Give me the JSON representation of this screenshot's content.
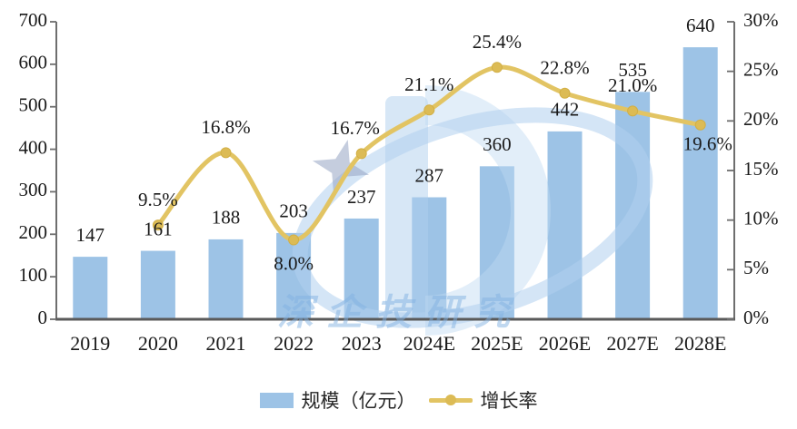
{
  "chart_data": {
    "type": "bar",
    "subtype": "bar-line-combo",
    "categories": [
      "2019",
      "2020",
      "2021",
      "2022",
      "2023",
      "2024E",
      "2025E",
      "2026E",
      "2027E",
      "2028E"
    ],
    "series": [
      {
        "name": "规模（亿元）",
        "type": "bar",
        "axis": "left",
        "values": [
          147,
          161,
          188,
          203,
          237,
          287,
          360,
          442,
          535,
          640
        ],
        "labels": [
          "147",
          "161",
          "188",
          "203",
          "237",
          "287",
          "360",
          "442",
          "535",
          "640"
        ],
        "color": "#9DC3E6"
      },
      {
        "name": "增长率",
        "type": "line",
        "axis": "right",
        "values": [
          null,
          9.5,
          16.8,
          8.0,
          16.7,
          21.1,
          25.4,
          22.8,
          21.0,
          19.6
        ],
        "labels": [
          null,
          "9.5%",
          "16.8%",
          "8.0%",
          "16.7%",
          "21.1%",
          "25.4%",
          "22.8%",
          "21.0%",
          "19.6%"
        ],
        "color": "#E2C463",
        "marker_color": "#DCBB55"
      }
    ],
    "left_axis": {
      "min": 0,
      "max": 700,
      "step": 100,
      "ticks": [
        "0",
        "100",
        "200",
        "300",
        "400",
        "500",
        "600",
        "700"
      ]
    },
    "right_axis": {
      "min": 0,
      "max": 30,
      "step": 5,
      "ticks": [
        "0%",
        "5%",
        "10%",
        "15%",
        "20%",
        "25%",
        "30%"
      ]
    },
    "grid": false,
    "legend_position": "bottom-center",
    "legend": [
      {
        "label": "规模（亿元）",
        "swatch": "bar"
      },
      {
        "label": "增长率",
        "swatch": "line"
      }
    ],
    "colors": {
      "bar": "#9DC3E6",
      "line": "#E2C463",
      "marker": "#DCBB55",
      "axis": "#6E6E6E",
      "text": "#1A1A1A",
      "watermark": "#BDD7EE"
    }
  },
  "watermark": {
    "text": "深企技研究"
  }
}
